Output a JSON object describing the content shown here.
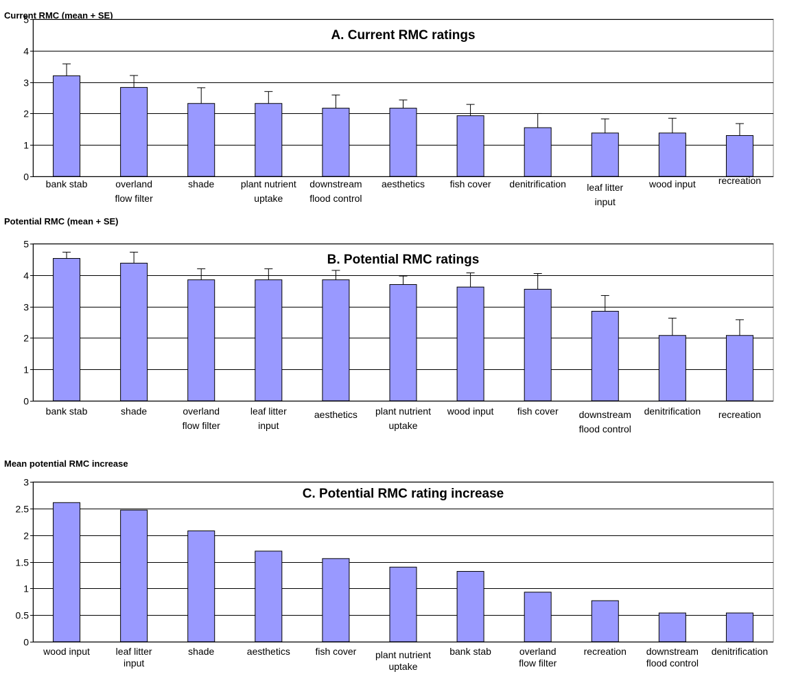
{
  "chart_data": [
    {
      "type": "bar",
      "title": "A. Current RMC ratings",
      "ylabel": "Current RMC  (mean + SE)",
      "ylim": [
        0,
        5
      ],
      "yticks": [
        "0",
        "1",
        "2",
        "3",
        "4",
        "5"
      ],
      "grid": true,
      "bar_color": "#9999ff",
      "categories": [
        [
          "bank stab"
        ],
        [
          "overland",
          "flow filter"
        ],
        [
          "shade"
        ],
        [
          "plant nutrient",
          "uptake"
        ],
        [
          "downstream",
          "flood control"
        ],
        [
          "aesthetics"
        ],
        [
          "fish cover"
        ],
        [
          "denitrification"
        ],
        [
          "leaf litter",
          "input"
        ],
        [
          "wood input"
        ],
        [
          "recreation"
        ]
      ],
      "values": [
        3.2,
        2.83,
        2.32,
        2.32,
        2.17,
        2.17,
        1.93,
        1.55,
        1.38,
        1.38,
        1.3
      ],
      "error": [
        0.38,
        0.38,
        0.5,
        0.38,
        0.42,
        0.26,
        0.36,
        0.45,
        0.45,
        0.47,
        0.38
      ]
    },
    {
      "type": "bar",
      "title": "B. Potential RMC ratings",
      "ylabel": "Potential RMC  (mean + SE)",
      "ylim": [
        0,
        5
      ],
      "yticks": [
        "0",
        "1",
        "2",
        "3",
        "4",
        "5"
      ],
      "grid": true,
      "bar_color": "#9999ff",
      "categories": [
        [
          "bank stab"
        ],
        [
          "shade"
        ],
        [
          "overland",
          "flow  filter"
        ],
        [
          "leaf litter",
          "input"
        ],
        [
          "aesthetics"
        ],
        [
          "plant nutrient",
          "uptake"
        ],
        [
          "wood input"
        ],
        [
          "fish cover"
        ],
        [
          "downstream",
          "flood control"
        ],
        [
          "denitrification"
        ],
        [
          "recreation"
        ]
      ],
      "values": [
        4.53,
        4.38,
        3.85,
        3.85,
        3.85,
        3.7,
        3.62,
        3.55,
        2.85,
        2.08,
        2.08
      ],
      "error": [
        0.2,
        0.35,
        0.35,
        0.35,
        0.3,
        0.27,
        0.45,
        0.5,
        0.5,
        0.55,
        0.5
      ]
    },
    {
      "type": "bar",
      "title": "C. Potential RMC rating increase",
      "ylabel": "Mean potential RMC increase",
      "ylim": [
        0,
        3
      ],
      "yticks": [
        "0",
        "0.5",
        "1",
        "1.5",
        "2",
        "2.5",
        "3"
      ],
      "grid": true,
      "bar_color": "#9999ff",
      "categories": [
        [
          "wood input"
        ],
        [
          "leaf litter",
          "input"
        ],
        [
          "shade"
        ],
        [
          "aesthetics"
        ],
        [
          "fish cover"
        ],
        [
          "plant nutrient",
          "uptake"
        ],
        [
          "bank stab"
        ],
        [
          "overland",
          "flow filter"
        ],
        [
          "recreation"
        ],
        [
          "downstream",
          "flood control"
        ],
        [
          "denitrification"
        ]
      ],
      "values": [
        2.61,
        2.47,
        2.08,
        1.7,
        1.56,
        1.4,
        1.32,
        0.93,
        0.77,
        0.54,
        0.54
      ],
      "error": []
    }
  ]
}
